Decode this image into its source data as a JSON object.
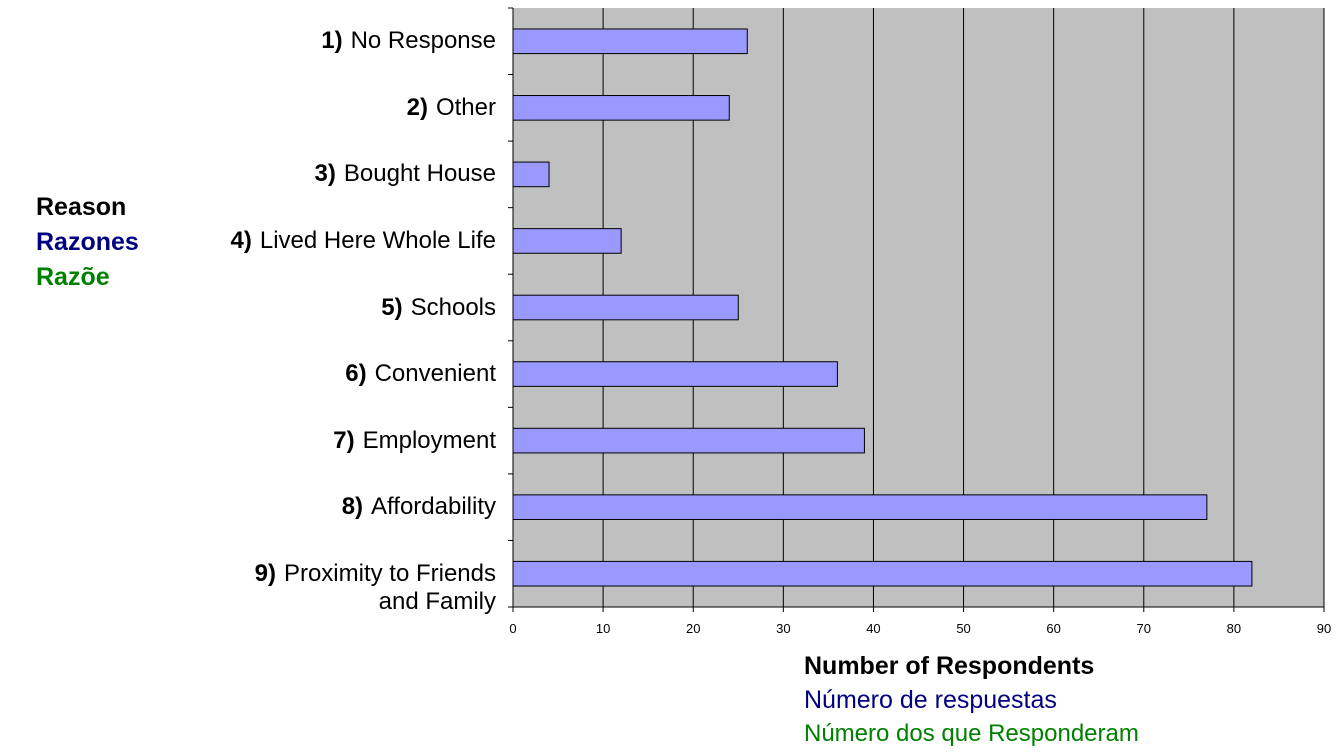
{
  "chart_data": {
    "type": "bar",
    "orientation": "horizontal",
    "categories": [
      {
        "num": "1)",
        "label": "No Response"
      },
      {
        "num": "2)",
        "label": "Other"
      },
      {
        "num": "3)",
        "label": "Bought House"
      },
      {
        "num": "4)",
        "label": "Lived Here Whole Life"
      },
      {
        "num": "5)",
        "label": "Schools"
      },
      {
        "num": "6)",
        "label": "Convenient"
      },
      {
        "num": "7)",
        "label": "Employment"
      },
      {
        "num": "8)",
        "label": "Affordability"
      },
      {
        "num": "9)",
        "label": "Proximity to Friends",
        "label2": "and Family"
      }
    ],
    "values": [
      26,
      24,
      4,
      12,
      25,
      36,
      39,
      77,
      82
    ],
    "xlim": [
      0,
      90
    ],
    "xticks": [
      "0",
      "10",
      "20",
      "30",
      "40",
      "50",
      "60",
      "70",
      "80",
      "90"
    ],
    "xlabel": [
      "Number of Respondents",
      "Número de respuestas",
      "Número dos que Responderam"
    ],
    "ylabel": [
      "Reason",
      "Razones",
      "Razõe"
    ],
    "grid": "vertical",
    "colors": {
      "plot_bg": "#c0c0c0",
      "bar_fill": "#9999ff",
      "bar_stroke": "#000000",
      "grid": "#000000",
      "english": "#000000",
      "spanish": "#000080",
      "portuguese": "#008000"
    }
  }
}
